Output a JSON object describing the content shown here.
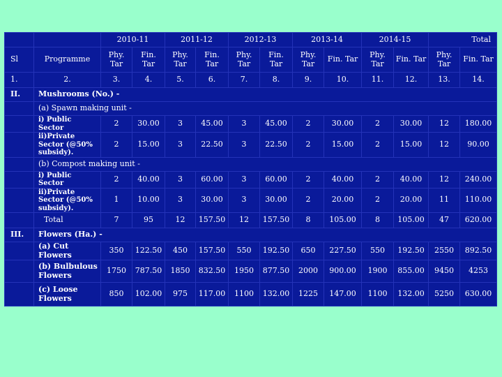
{
  "colors": {
    "background": "#99ffcc",
    "table_bg": "#0a1a9a",
    "text": "#ffffff"
  },
  "years": [
    "2010-11",
    "2011-12",
    "2012-13",
    "2013-14",
    "2014-15",
    "Total"
  ],
  "header": {
    "sl": "Sl",
    "programme": "Programme",
    "phy": "Phy. Tar",
    "fin": "Fin. Tar"
  },
  "index_row": [
    "1.",
    "2.",
    "3.",
    "4.",
    "5.",
    "6.",
    "7.",
    "8.",
    "9.",
    "10.",
    "11.",
    "12.",
    "13.",
    "14."
  ],
  "section_mushrooms": {
    "sl": "II.",
    "label": "Mushrooms (No.) -"
  },
  "sub_spawn": "(a) Spawn making unit -",
  "spawn_rows": [
    {
      "label": "i) Public Sector",
      "values": [
        "2",
        "30.00",
        "3",
        "45.00",
        "3",
        "45.00",
        "2",
        "30.00",
        "2",
        "30.00",
        "12",
        "180.00"
      ]
    },
    {
      "label": "ii)Private Sector (@50% subsidy).",
      "values": [
        "2",
        "15.00",
        "3",
        "22.50",
        "3",
        "22.50",
        "2",
        "15.00",
        "2",
        "15.00",
        "12",
        "90.00"
      ]
    }
  ],
  "sub_compost": "(b) Compost making unit -",
  "compost_rows": [
    {
      "label": "i) Public Sector",
      "values": [
        "2",
        "40.00",
        "3",
        "60.00",
        "3",
        "60.00",
        "2",
        "40.00",
        "2",
        "40.00",
        "12",
        "240.00"
      ]
    },
    {
      "label": "ii)Private Sector (@50% subsidy).",
      "values": [
        "1",
        "10.00",
        "3",
        "30.00",
        "3",
        "30.00",
        "2",
        "20.00",
        "2",
        "20.00",
        "11",
        "110.00"
      ]
    }
  ],
  "total_row": {
    "label": "Total",
    "values": [
      "7",
      "95",
      "12",
      "157.50",
      "12",
      "157.50",
      "8",
      "105.00",
      "8",
      "105.00",
      "47",
      "620.00"
    ]
  },
  "section_flowers": {
    "sl": "III.",
    "label": "Flowers (Ha.) -"
  },
  "flower_rows": [
    {
      "label": "(a) Cut Flowers",
      "values": [
        "350",
        "122.50",
        "450",
        "157.50",
        "550",
        "192.50",
        "650",
        "227.50",
        "550",
        "192.50",
        "2550",
        "892.50"
      ]
    },
    {
      "label": "(b) Bulbulous Flowers",
      "values": [
        "1750",
        "787.50",
        "1850",
        "832.50",
        "1950",
        "877.50",
        "2000",
        "900.00",
        "1900",
        "855.00",
        "9450",
        "4253"
      ]
    },
    {
      "label": "(c) Loose Flowers",
      "values": [
        "850",
        "102.00",
        "975",
        "117.00",
        "1100",
        "132.00",
        "1225",
        "147.00",
        "1100",
        "132.00",
        "5250",
        "630.00"
      ]
    }
  ]
}
